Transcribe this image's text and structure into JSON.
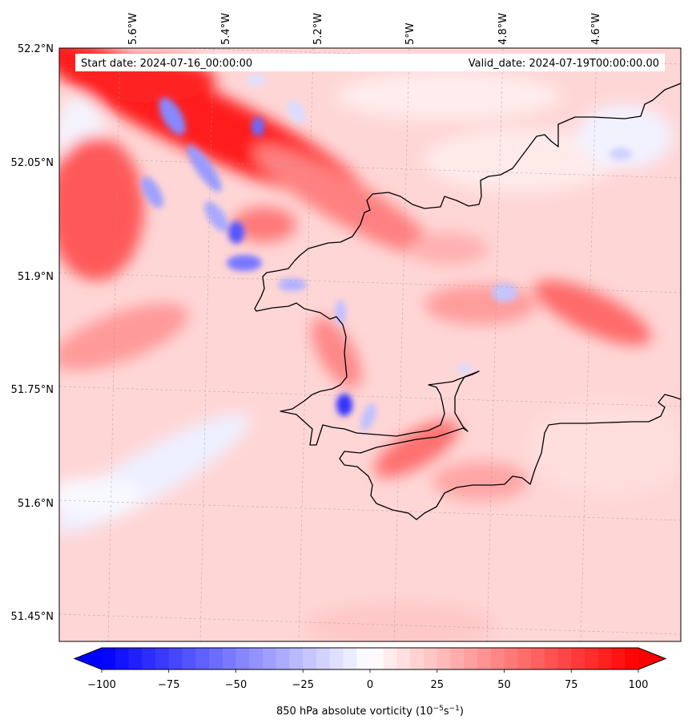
{
  "map": {
    "start_label": "Start date: 2024-07-16_00:00:00",
    "valid_label": "Valid_date: 2024-07-19T00:00:00.00",
    "lon_labels": [
      "5.6°W",
      "5.4°W",
      "5.2°W",
      "5°W",
      "4.8°W",
      "4.6°W"
    ],
    "lat_labels": [
      "52.2°N",
      "52.05°N",
      "51.9°N",
      "51.75°N",
      "51.6°N",
      "51.45°N"
    ],
    "field": "850 hPa absolute vorticity",
    "colormap": "bwr",
    "colors": {
      "negative": "#0000ff",
      "neutral": "#ffffff",
      "positive": "#ff0000",
      "coastline": "#000000"
    }
  },
  "colorbar": {
    "ticks": [
      "−100",
      "−75",
      "−50",
      "−25",
      "0",
      "25",
      "50",
      "75",
      "100"
    ],
    "min": -100,
    "max": 100,
    "extend": "both",
    "label_prefix": "850 hPa absolute vorticity (10",
    "label_exp1": "−5",
    "label_mid": "s",
    "label_exp2": "−1",
    "label_suffix": ")"
  }
}
